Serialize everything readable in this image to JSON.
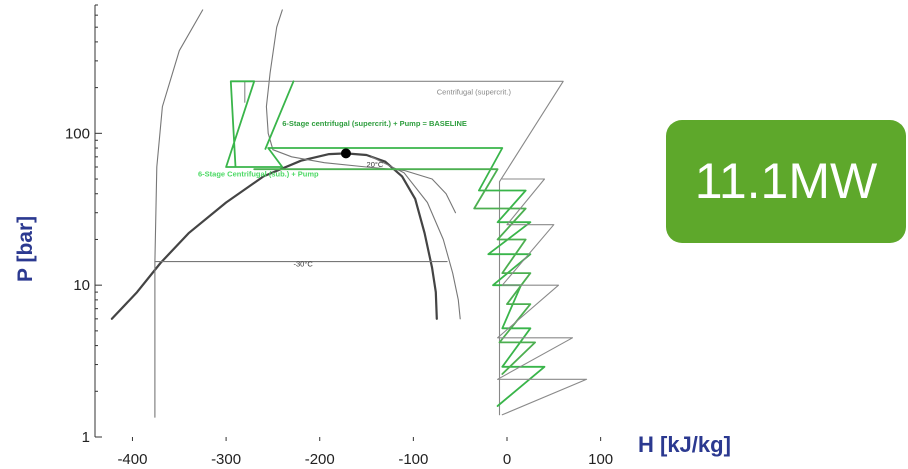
{
  "chart_data": {
    "type": "line",
    "xlabel": "H [kJ/kg]",
    "ylabel": "P [bar]",
    "xlim": [
      -440,
      110
    ],
    "ylim": [
      1,
      700
    ],
    "yscale": "log",
    "x_ticks": [
      "-400",
      "-300",
      "-200",
      "-100",
      "0",
      "100"
    ],
    "y_ticks": [
      "1",
      "10",
      "100"
    ],
    "critical_point": {
      "h": -172,
      "p": 73.8
    },
    "annotations": {
      "supercrit": "Centrifugal (supercrit.)",
      "baseline": "6-Stage centrifugal (supercrit.) + Pump = BASELINE",
      "subcrit": "6-Stage Centrifugal (sub.) + Pump",
      "isotherm_20": "20°C",
      "isotherm_m30": "-30°C"
    },
    "series": [
      {
        "role": "saturation-dome",
        "color": "#444444",
        "points": [
          [
            -422,
            6
          ],
          [
            -395,
            9
          ],
          [
            -370,
            14
          ],
          [
            -340,
            22
          ],
          [
            -300,
            35
          ],
          [
            -260,
            52
          ],
          [
            -220,
            66
          ],
          [
            -190,
            73
          ],
          [
            -172,
            73.8
          ],
          [
            -150,
            72
          ],
          [
            -130,
            65
          ],
          [
            -112,
            52
          ],
          [
            -98,
            37
          ],
          [
            -88,
            22
          ],
          [
            -80,
            13
          ],
          [
            -76,
            9
          ],
          [
            -75,
            6
          ]
        ]
      },
      {
        "role": "isotherm-right",
        "color": "#777777",
        "points": [
          [
            -145,
            70
          ],
          [
            -110,
            55
          ],
          [
            -85,
            35
          ],
          [
            -68,
            20
          ],
          [
            -58,
            12
          ],
          [
            -52,
            8
          ],
          [
            -50,
            6
          ]
        ]
      },
      {
        "role": "isotherm-m30",
        "color": "#777777",
        "points": [
          [
            -376,
            1.35
          ],
          [
            -376,
            14.3
          ],
          [
            -282,
            14.3
          ],
          [
            -64,
            14.3
          ]
        ]
      },
      {
        "role": "isotherm-upper-left",
        "color": "#777777",
        "points": [
          [
            -376,
            14.3
          ],
          [
            -374,
            60
          ],
          [
            -368,
            150
          ],
          [
            -350,
            350
          ],
          [
            -325,
            650
          ]
        ]
      },
      {
        "role": "isotherm-upper-mid",
        "color": "#777777",
        "points": [
          [
            -240,
            650
          ],
          [
            -246,
            500
          ],
          [
            -253,
            250
          ],
          [
            -257,
            150
          ],
          [
            -255,
            100
          ],
          [
            -250,
            78
          ],
          [
            -230,
            70
          ],
          [
            -195,
            64
          ],
          [
            -150,
            60
          ],
          [
            -110,
            57
          ],
          [
            -80,
            50
          ],
          [
            -65,
            40
          ],
          [
            -55,
            30
          ]
        ]
      },
      {
        "role": "centrifugal-supercrit",
        "color": "#888888",
        "points": [
          [
            -280,
            160
          ],
          [
            -280,
            220
          ],
          [
            60,
            220
          ],
          [
            -8,
            48
          ],
          [
            -8,
            1.4
          ]
        ]
      },
      {
        "role": "baseline-6stage",
        "color": "#39b54a",
        "points": [
          [
            -290,
            60
          ],
          [
            -295,
            220
          ],
          [
            -270,
            220
          ],
          [
            -300,
            60
          ],
          [
            -240,
            60
          ],
          [
            -255,
            80
          ],
          [
            -5,
            80
          ],
          [
            -30,
            42
          ],
          [
            20,
            42
          ],
          [
            -10,
            26
          ],
          [
            25,
            26
          ],
          [
            -20,
            16
          ],
          [
            25,
            16
          ],
          [
            -15,
            10
          ],
          [
            15,
            10
          ],
          [
            -5,
            5.2
          ],
          [
            25,
            5.2
          ],
          [
            -5,
            2.9
          ],
          [
            40,
            2.9
          ],
          [
            -10,
            1.6
          ]
        ]
      },
      {
        "role": "subcrit-6stage",
        "color": "#4caf50",
        "points": [
          [
            -270,
            58
          ],
          [
            -225,
            58
          ],
          [
            -10,
            58
          ],
          [
            -35,
            32
          ],
          [
            20,
            32
          ],
          [
            -10,
            20
          ],
          [
            20,
            20
          ],
          [
            -5,
            12
          ],
          [
            25,
            12
          ],
          [
            0,
            7.5
          ],
          [
            25,
            7.5
          ],
          [
            -8,
            4.2
          ],
          [
            30,
            4.2
          ],
          [
            -5,
            2.6
          ]
        ]
      },
      {
        "role": "pump-step",
        "color": "#39b54a",
        "points": [
          [
            -258,
            79
          ],
          [
            -228,
            220
          ]
        ]
      },
      {
        "role": "gray-zigzag",
        "color": "#8a8a8a",
        "points": [
          [
            -5,
            50
          ],
          [
            40,
            50
          ],
          [
            0,
            25
          ],
          [
            50,
            25
          ],
          [
            -5,
            10
          ],
          [
            55,
            10
          ],
          [
            -10,
            4.5
          ],
          [
            70,
            4.5
          ],
          [
            -10,
            2.4
          ],
          [
            85,
            2.4
          ],
          [
            -5,
            1.4
          ]
        ]
      }
    ]
  },
  "callout": {
    "value": "11.1MW",
    "color": "#5ea82b"
  }
}
